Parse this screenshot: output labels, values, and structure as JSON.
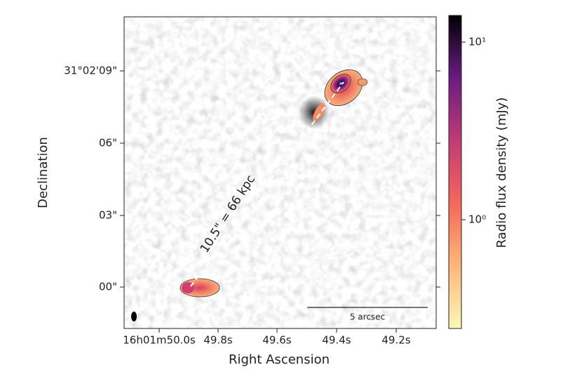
{
  "figure": {
    "x_axis": {
      "label": "Right Ascension",
      "ticks": [
        "16h01m50.0s",
        "49.8s",
        "49.6s",
        "49.4s",
        "49.2s"
      ]
    },
    "y_axis": {
      "label": "Declination",
      "ticks": [
        "31°02'09\"",
        "06\"",
        "03\"",
        "00\""
      ]
    },
    "colorbar": {
      "label": "Radio flux density (mJy)",
      "ticks": [
        "10¹",
        "10⁰"
      ]
    },
    "annotation": "10.5\" = 66 kpc",
    "scale_bar": "5 arcsec"
  }
}
